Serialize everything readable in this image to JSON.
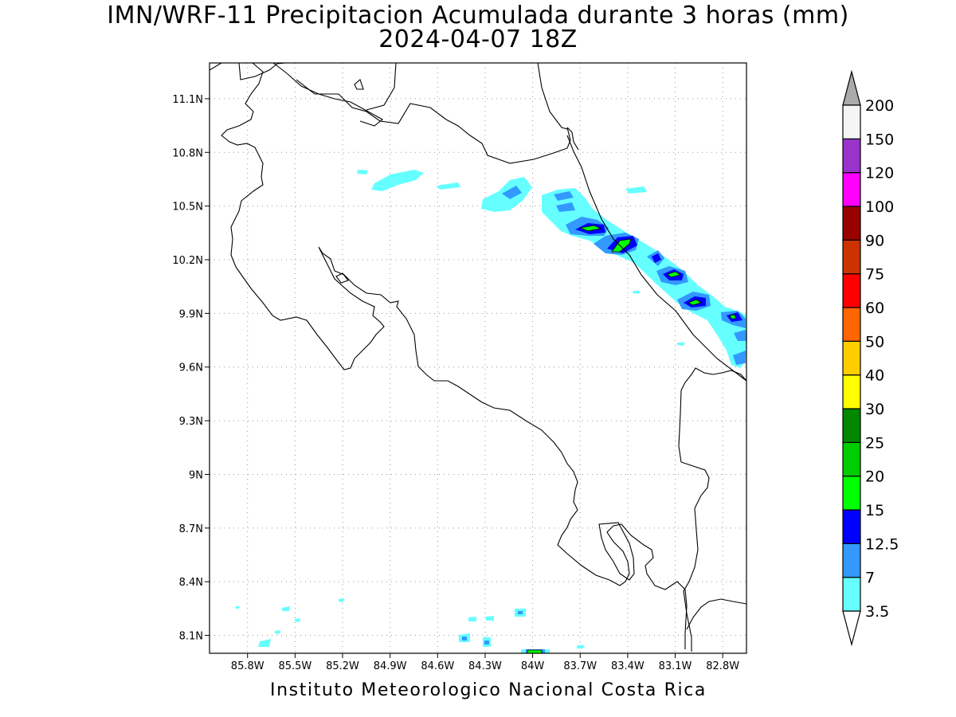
{
  "title": "IMN/WRF-11 Precipitacion Acumulada durante 3 horas (mm)",
  "subtitle": "2024-04-07 18Z",
  "footer": "Instituto Meteorologico Nacional Costa Rica",
  "map": {
    "lon_range": [
      -86.04,
      -82.65
    ],
    "lat_range": [
      8.0,
      11.3
    ],
    "lon_ticks": [
      {
        "value": -85.8,
        "label": "85.8W"
      },
      {
        "value": -85.5,
        "label": "85.5W"
      },
      {
        "value": -85.2,
        "label": "85.2W"
      },
      {
        "value": -84.9,
        "label": "84.9W"
      },
      {
        "value": -84.6,
        "label": "84.6W"
      },
      {
        "value": -84.3,
        "label": "84.3W"
      },
      {
        "value": -84.0,
        "label": "84W"
      },
      {
        "value": -83.7,
        "label": "83.7W"
      },
      {
        "value": -83.4,
        "label": "83.4W"
      },
      {
        "value": -83.1,
        "label": "83.1W"
      },
      {
        "value": -82.8,
        "label": "82.8W"
      }
    ],
    "lat_ticks": [
      {
        "value": 11.1,
        "label": "11.1N"
      },
      {
        "value": 10.8,
        "label": "10.8N"
      },
      {
        "value": 10.5,
        "label": "10.5N"
      },
      {
        "value": 10.2,
        "label": "10.2N"
      },
      {
        "value": 9.9,
        "label": "9.9N"
      },
      {
        "value": 9.6,
        "label": "9.6N"
      },
      {
        "value": 9.3,
        "label": "9.3N"
      },
      {
        "value": 9.0,
        "label": "9N"
      },
      {
        "value": 8.7,
        "label": "8.7N"
      },
      {
        "value": 8.4,
        "label": "8.4N"
      },
      {
        "value": 8.1,
        "label": "8.1N"
      }
    ],
    "grid": true
  },
  "colorbar": {
    "colors": [
      "#66ffff",
      "#3399ff",
      "#0000ff",
      "#00ff00",
      "#00cc00",
      "#008800",
      "#ffff00",
      "#ffcc00",
      "#ff6600",
      "#ff0000",
      "#cc3300",
      "#990000",
      "#ff00ff",
      "#9933cc",
      "#f5f5f5"
    ],
    "labels": [
      "3.5",
      "7",
      "12.5",
      "15",
      "20",
      "25",
      "30",
      "40",
      "50",
      "60",
      "75",
      "90",
      "100",
      "120",
      "150",
      "200"
    ],
    "over_color": "#aaaaaa",
    "under_color": "#ffffff"
  }
}
